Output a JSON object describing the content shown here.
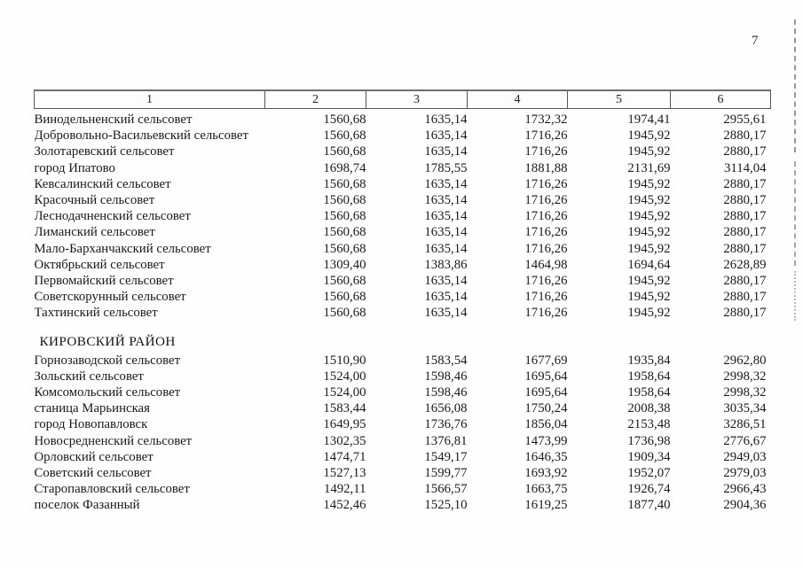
{
  "page": {
    "number": "7"
  },
  "table": {
    "headers": [
      "1",
      "2",
      "3",
      "4",
      "5",
      "6"
    ],
    "sections": [
      {
        "title": "",
        "rows": [
          {
            "name": "Винодельненский сельсовет",
            "values": [
              "1560,68",
              "1635,14",
              "1732,32",
              "1974,41",
              "2955,61"
            ]
          },
          {
            "name": "Добровольно-Васильевский сельсовет",
            "values": [
              "1560,68",
              "1635,14",
              "1716,26",
              "1945,92",
              "2880,17"
            ]
          },
          {
            "name": "Золотаревский сельсовет",
            "values": [
              "1560,68",
              "1635,14",
              "1716,26",
              "1945,92",
              "2880,17"
            ]
          },
          {
            "name": "город Ипатово",
            "values": [
              "1698,74",
              "1785,55",
              "1881,88",
              "2131,69",
              "3114,04"
            ]
          },
          {
            "name": "Кевсалинский сельсовет",
            "values": [
              "1560,68",
              "1635,14",
              "1716,26",
              "1945,92",
              "2880,17"
            ]
          },
          {
            "name": "Красочный сельсовет",
            "values": [
              "1560,68",
              "1635,14",
              "1716,26",
              "1945,92",
              "2880,17"
            ]
          },
          {
            "name": "Леснодачненский сельсовет",
            "values": [
              "1560,68",
              "1635,14",
              "1716,26",
              "1945,92",
              "2880,17"
            ]
          },
          {
            "name": "Лиманский сельсовет",
            "values": [
              "1560,68",
              "1635,14",
              "1716,26",
              "1945,92",
              "2880,17"
            ]
          },
          {
            "name": "Мало-Барханчакский сельсовет",
            "values": [
              "1560,68",
              "1635,14",
              "1716,26",
              "1945,92",
              "2880,17"
            ]
          },
          {
            "name": "Октябрьский сельсовет",
            "values": [
              "1309,40",
              "1383,86",
              "1464,98",
              "1694,64",
              "2628,89"
            ]
          },
          {
            "name": "Первомайский сельсовет",
            "values": [
              "1560,68",
              "1635,14",
              "1716,26",
              "1945,92",
              "2880,17"
            ]
          },
          {
            "name": "Советскорунный сельсовет",
            "values": [
              "1560,68",
              "1635,14",
              "1716,26",
              "1945,92",
              "2880,17"
            ]
          },
          {
            "name": "Тахтинский сельсовет",
            "values": [
              "1560,68",
              "1635,14",
              "1716,26",
              "1945,92",
              "2880,17"
            ]
          }
        ]
      },
      {
        "title": "КИРОВСКИЙ РАЙОН",
        "rows": [
          {
            "name": "Горнозаводской сельсовет",
            "values": [
              "1510,90",
              "1583,54",
              "1677,69",
              "1935,84",
              "2962,80"
            ]
          },
          {
            "name": "Зольский сельсовет",
            "values": [
              "1524,00",
              "1598,46",
              "1695,64",
              "1958,64",
              "2998,32"
            ]
          },
          {
            "name": "Комсомольский сельсовет",
            "values": [
              "1524,00",
              "1598,46",
              "1695,64",
              "1958,64",
              "2998,32"
            ]
          },
          {
            "name": "станица Марьинская",
            "values": [
              "1583,44",
              "1656,08",
              "1750,24",
              "2008,38",
              "3035,34"
            ]
          },
          {
            "name": "город Новопавловск",
            "values": [
              "1649,95",
              "1736,76",
              "1856,04",
              "2153,48",
              "3286,51"
            ]
          },
          {
            "name": "Новосредненский сельсовет",
            "values": [
              "1302,35",
              "1376,81",
              "1473,99",
              "1736,98",
              "2776,67"
            ]
          },
          {
            "name": "Орловский сельсовет",
            "values": [
              "1474,71",
              "1549,17",
              "1646,35",
              "1909,34",
              "2949,03"
            ]
          },
          {
            "name": "Советский сельсовет",
            "values": [
              "1527,13",
              "1599,77",
              "1693,92",
              "1952,07",
              "2979,03"
            ]
          },
          {
            "name": "Старопавловский сельсовет",
            "values": [
              "1492,11",
              "1566,57",
              "1663,75",
              "1926,74",
              "2966,43"
            ]
          },
          {
            "name": "поселок Фазанный",
            "values": [
              "1452,46",
              "1525,10",
              "1619,25",
              "1877,40",
              "2904,36"
            ]
          }
        ]
      }
    ]
  }
}
